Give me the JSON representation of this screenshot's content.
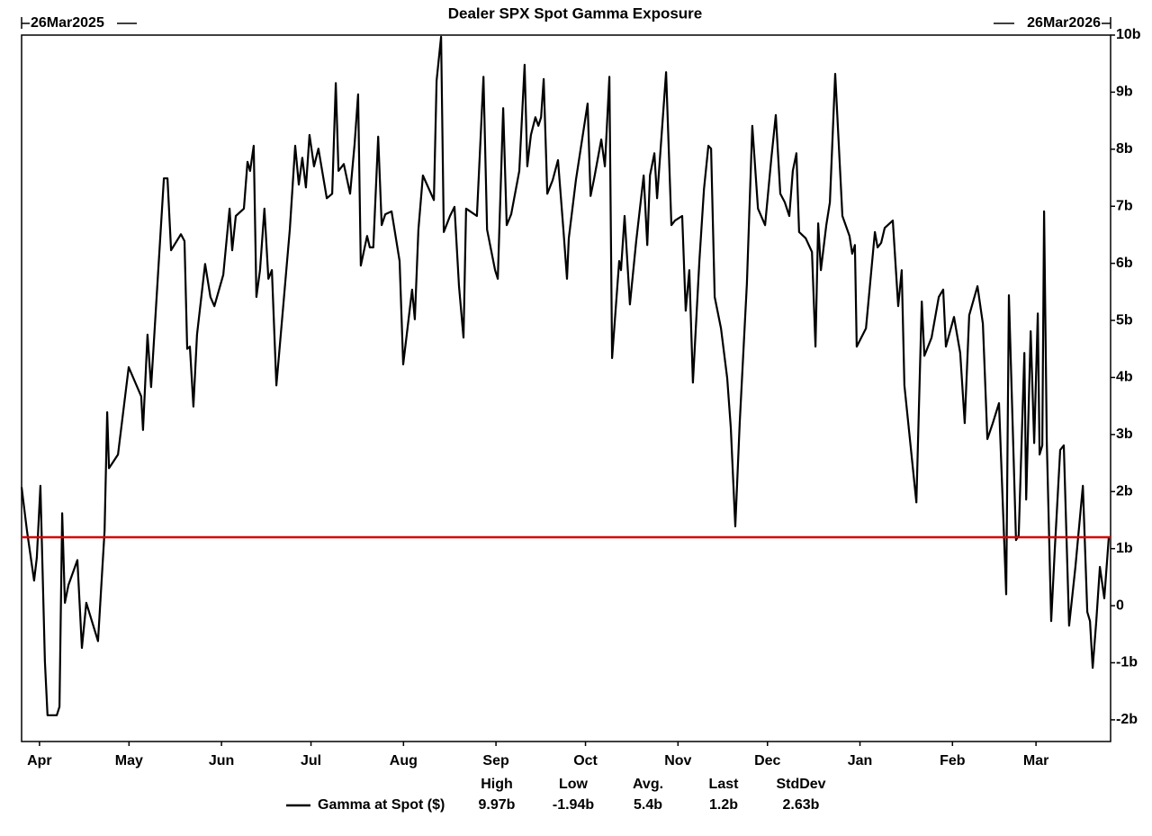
{
  "chart_data": {
    "type": "line",
    "title": "Dealer SPX Spot Gamma Exposure",
    "start_label": "26Mar2025",
    "end_label": "26Mar2026",
    "xlim": [
      0,
      365
    ],
    "xticks": [
      {
        "value": 6,
        "label": "Apr"
      },
      {
        "value": 36,
        "label": "May"
      },
      {
        "value": 67,
        "label": "Jun"
      },
      {
        "value": 97,
        "label": "Jul"
      },
      {
        "value": 128,
        "label": "Aug"
      },
      {
        "value": 159,
        "label": "Sep"
      },
      {
        "value": 189,
        "label": "Oct"
      },
      {
        "value": 220,
        "label": "Nov"
      },
      {
        "value": 250,
        "label": "Dec"
      },
      {
        "value": 281,
        "label": "Jan"
      },
      {
        "value": 312,
        "label": "Feb"
      },
      {
        "value": 340,
        "label": "Mar"
      }
    ],
    "ylim": [
      -2.38,
      10
    ],
    "yticks": [
      {
        "value": 10,
        "label": "10b"
      },
      {
        "value": 9,
        "label": "9b"
      },
      {
        "value": 8,
        "label": "8b"
      },
      {
        "value": 7,
        "label": "7b"
      },
      {
        "value": 6,
        "label": "6b"
      },
      {
        "value": 5,
        "label": "5b"
      },
      {
        "value": 4,
        "label": "4b"
      },
      {
        "value": 3,
        "label": "3b"
      },
      {
        "value": 2,
        "label": "2b"
      },
      {
        "value": 1,
        "label": "1b"
      },
      0,
      {
        "value": -1,
        "label": "-1b"
      },
      {
        "value": -2,
        "label": "-2b"
      }
    ],
    "reference_line": {
      "value": 1.2,
      "color": "#d40000"
    },
    "stats": {
      "headers": [
        "High",
        "Low",
        "Avg.",
        "Last",
        "StdDev"
      ],
      "values": [
        "9.97b",
        "-1.94b",
        "5.4b",
        "1.2b",
        "2.63b"
      ]
    },
    "x": [
      0,
      1.8,
      4.2,
      5.1,
      6.3,
      7.8,
      8.7,
      11.8,
      12.7,
      13.6,
      14.5,
      15.7,
      18.7,
      20.2,
      21.7,
      25.6,
      27.8,
      28.7,
      29.3,
      32.3,
      35.9,
      40.1,
      40.7,
      42.2,
      43.4,
      47.7,
      48.9,
      50.1,
      53.4,
      54.6,
      55.5,
      56.4,
      57.6,
      58.8,
      61.5,
      63.3,
      64.6,
      67.6,
      69.7,
      70.6,
      71.8,
      74.5,
      75.7,
      76.6,
      77.8,
      78.7,
      79.9,
      81.4,
      82.7,
      83.9,
      85.4,
      89.9,
      91.7,
      92.9,
      94.1,
      95.3,
      96.5,
      98.0,
      99.5,
      102.3,
      104.1,
      105.3,
      106.2,
      108.0,
      110.1,
      111.6,
      112.8,
      113.7,
      115.8,
      116.7,
      117.9,
      119.5,
      120.7,
      121.9,
      124.0,
      126.7,
      127.9,
      130.9,
      131.8,
      133.0,
      134.5,
      138.2,
      139.1,
      140.6,
      141.5,
      143.6,
      145.1,
      146.6,
      148.1,
      149.0,
      152.6,
      154.8,
      156.0,
      158.7,
      159.6,
      161.4,
      162.6,
      164.1,
      166.8,
      168.6,
      169.5,
      170.7,
      172.2,
      173.2,
      174.1,
      175.0,
      176.2,
      178.0,
      179.8,
      181.6,
      182.8,
      183.4,
      185.8,
      189.7,
      190.7,
      191.9,
      194.3,
      195.5,
      197.0,
      197.9,
      200.3,
      200.9,
      202.1,
      203.9,
      206.0,
      208.5,
      209.7,
      210.6,
      212.1,
      213.0,
      216.0,
      217.8,
      219.0,
      221.4,
      222.6,
      223.8,
      225.0,
      227.2,
      228.7,
      230.2,
      231.1,
      232.3,
      234.4,
      236.5,
      237.7,
      239.2,
      240.7,
      243.1,
      244.9,
      246.8,
      249.2,
      251.3,
      252.8,
      254.3,
      255.8,
      257.3,
      258.5,
      259.7,
      260.6,
      262.8,
      264.9,
      266.1,
      267.0,
      267.9,
      269.7,
      270.9,
      272.7,
      275.1,
      277.5,
      278.4,
      279.3,
      279.9,
      283.0,
      286.0,
      286.9,
      288.1,
      289.3,
      292.0,
      293.8,
      295.0,
      295.9,
      299.9,
      301.7,
      302.6,
      305.0,
      307.4,
      308.9,
      309.8,
      312.5,
      314.6,
      316.1,
      317.6,
      320.4,
      322.2,
      323.7,
      325.5,
      327.6,
      330.0,
      330.9,
      333.3,
      334.2,
      336.1,
      336.7,
      338.2,
      339.4,
      340.6,
      341.2,
      342.1,
      342.7,
      343.6,
      345.1,
      346.3,
      348.1,
      349.3,
      351.1,
      353.2,
      355.7,
      357.2,
      358.1,
      359.0,
      360.2,
      361.4,
      362.9,
      364.4
    ],
    "series": [
      {
        "name": "Gamma at Spot ($)",
        "color": "#000000",
        "values": [
          2.08,
          1.31,
          0.44,
          0.84,
          2.1,
          -0.98,
          -1.92,
          -1.92,
          -1.77,
          1.62,
          0.05,
          0.36,
          0.8,
          -0.74,
          0.05,
          -0.62,
          1.31,
          3.39,
          2.41,
          2.65,
          4.18,
          3.67,
          3.08,
          4.75,
          3.83,
          7.49,
          7.49,
          6.23,
          6.51,
          6.39,
          4.5,
          4.54,
          3.49,
          4.75,
          5.99,
          5.41,
          5.25,
          5.8,
          6.96,
          6.23,
          6.83,
          6.96,
          7.78,
          7.62,
          8.06,
          5.41,
          5.88,
          6.96,
          5.73,
          5.88,
          3.86,
          6.59,
          8.06,
          7.38,
          7.85,
          7.33,
          8.25,
          7.7,
          8.01,
          7.14,
          7.22,
          9.16,
          7.62,
          7.74,
          7.22,
          8.09,
          8.96,
          5.96,
          6.48,
          6.28,
          6.28,
          8.22,
          6.67,
          6.86,
          6.91,
          6.04,
          4.23,
          5.54,
          5.02,
          6.59,
          7.54,
          7.11,
          9.2,
          9.97,
          6.55,
          6.83,
          6.99,
          5.6,
          4.7,
          6.96,
          6.83,
          9.27,
          6.59,
          5.88,
          5.73,
          8.72,
          6.67,
          6.86,
          7.62,
          9.48,
          7.7,
          8.25,
          8.56,
          8.41,
          8.56,
          9.23,
          7.22,
          7.46,
          7.81,
          6.59,
          5.73,
          6.44,
          7.46,
          8.8,
          7.18,
          7.49,
          8.17,
          7.7,
          9.27,
          4.34,
          6.04,
          5.88,
          6.83,
          5.28,
          6.39,
          7.54,
          6.32,
          7.54,
          7.93,
          7.14,
          9.35,
          6.67,
          6.75,
          6.83,
          5.17,
          5.88,
          3.91,
          6.07,
          7.3,
          8.06,
          8.01,
          5.41,
          4.86,
          3.99,
          3.12,
          1.39,
          3.2,
          5.65,
          8.41,
          6.96,
          6.67,
          7.85,
          8.6,
          7.22,
          7.07,
          6.83,
          7.62,
          7.93,
          6.55,
          6.44,
          6.2,
          4.54,
          6.7,
          5.88,
          6.67,
          7.07,
          9.32,
          6.83,
          6.48,
          6.17,
          6.32,
          4.54,
          4.86,
          6.55,
          6.28,
          6.36,
          6.62,
          6.75,
          5.25,
          5.88,
          3.86,
          1.81,
          5.33,
          4.38,
          4.7,
          5.41,
          5.54,
          4.54,
          5.06,
          4.43,
          3.2,
          5.09,
          5.6,
          4.94,
          2.92,
          3.2,
          3.55,
          0.2,
          5.44,
          1.15,
          1.23,
          4.43,
          1.86,
          4.81,
          2.85,
          5.12,
          2.65,
          2.81,
          6.91,
          2.88,
          -0.27,
          0.99,
          2.73,
          2.81,
          -0.35,
          0.68,
          2.1,
          -0.11,
          -0.27,
          -1.09,
          -0.27,
          0.68,
          0.13,
          1.2
        ]
      }
    ]
  }
}
